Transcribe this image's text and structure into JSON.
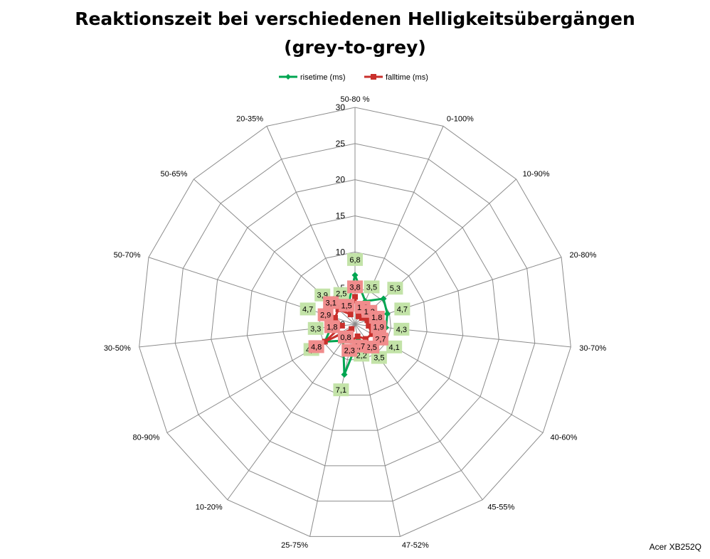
{
  "chart_data": {
    "type": "radar",
    "title": "Reaktionszeit bei verschiedenen Helligkeitsübergängen",
    "subtitle": "(grey-to-grey)",
    "categories": [
      "50-80 %",
      "0-100%",
      "10-90%",
      "20-80%",
      "30-70%",
      "40-60%",
      "45-55%",
      "47-52%",
      "25-75%",
      "10-20%",
      "80-90%",
      "30-50%",
      "50-70%",
      "50-65%",
      "20-35%"
    ],
    "radial_axis": {
      "range": [
        0,
        30
      ],
      "ticks": [
        "0",
        "5",
        "10",
        "15",
        "20",
        "25",
        "30"
      ]
    },
    "legend_position": "top",
    "series": [
      {
        "name": "risetime (ms)",
        "color": "#00a651",
        "label_bg": "#c3e3a8",
        "values": [
          6.8,
          3.5,
          5.3,
          4.7,
          4.3,
          4.1,
          3.5,
          2.2,
          7.1,
          2.8,
          4.8,
          3.3,
          4.7,
          3.9,
          2.5
        ],
        "labels": [
          "6,8",
          "3,5",
          "5,3",
          "4,7",
          "4,3",
          "4,1",
          "3,5",
          "2,2",
          "7,1",
          "",
          "4,8",
          "3,3",
          "4,7",
          "3,9",
          "2,5"
        ]
      },
      {
        "name": "falltime (ms)",
        "color": "#c9302c",
        "label_bg": "#f08c8c",
        "values": [
          3.8,
          1.2,
          1.3,
          1.8,
          1.9,
          2.7,
          2.5,
          1.7,
          2.3,
          0.8,
          4.8,
          1.8,
          2.9,
          3.1,
          1.5
        ],
        "labels": [
          "3,8",
          "1,2",
          "1,3",
          "1,8",
          "1,9",
          "2,7",
          "2,5",
          "1,7",
          "2,3",
          "0,8",
          "4,8",
          "1,8",
          "2,9",
          "3,1",
          "1,5"
        ]
      }
    ]
  },
  "credit": "Acer XB252Q"
}
